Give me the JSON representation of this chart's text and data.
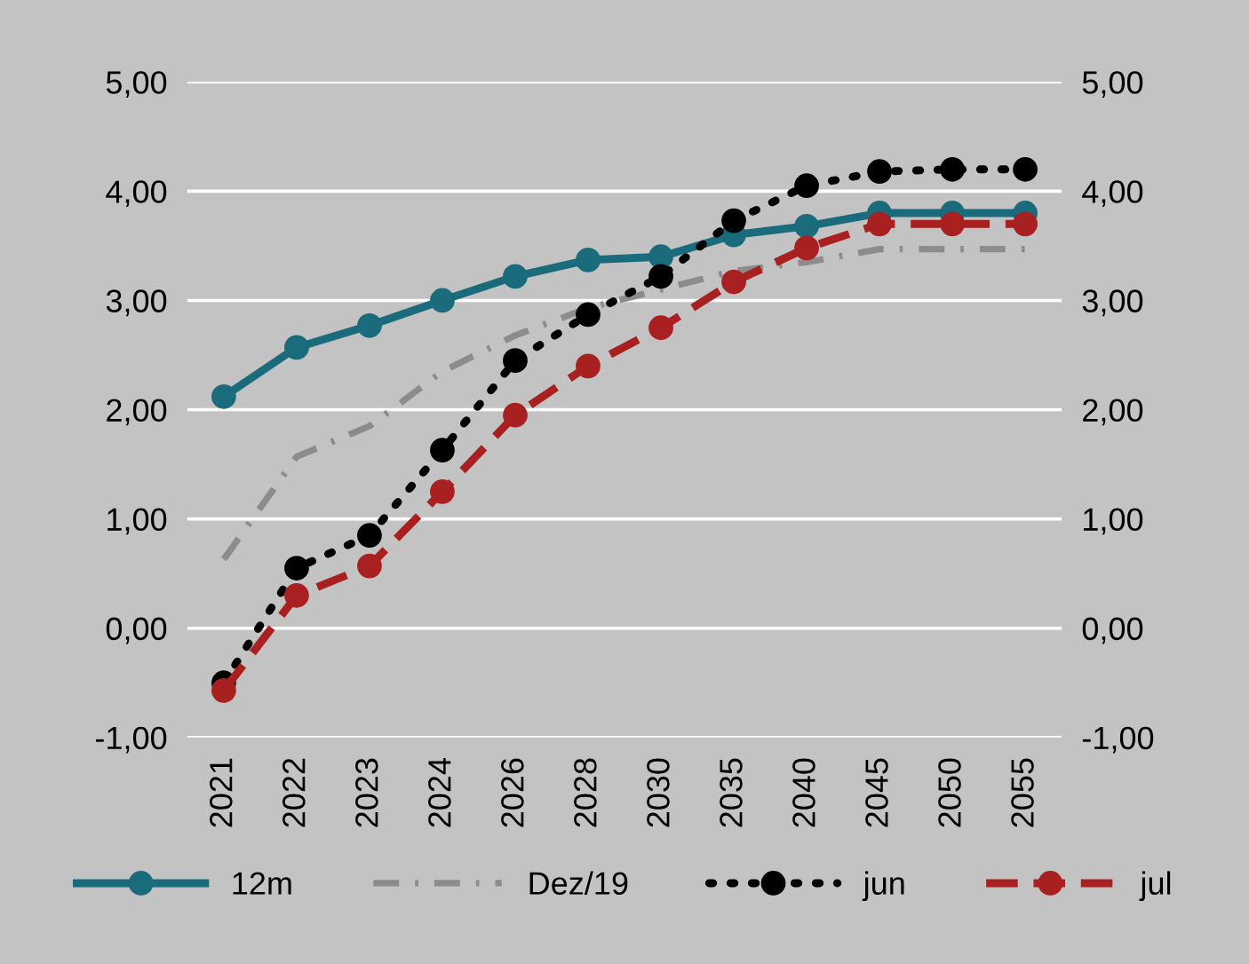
{
  "chart_data": {
    "type": "line",
    "categories": [
      "2021",
      "2022",
      "2023",
      "2024",
      "2026",
      "2028",
      "2030",
      "2035",
      "2040",
      "2045",
      "2050",
      "2055"
    ],
    "series": [
      {
        "name": "12m",
        "color": "#1a6b7c",
        "marker": "circle",
        "line_style": "solid",
        "values": [
          2.12,
          2.57,
          2.77,
          3.0,
          3.22,
          3.37,
          3.4,
          3.6,
          3.68,
          3.8,
          3.8,
          3.8
        ]
      },
      {
        "name": "Dez/19",
        "color": "#8c8c8c",
        "marker": "none",
        "line_style": "dashdot",
        "values": [
          0.63,
          1.57,
          1.85,
          2.35,
          2.68,
          2.93,
          3.1,
          3.27,
          3.35,
          3.47,
          3.47,
          3.47
        ]
      },
      {
        "name": "jun",
        "color": "#000000",
        "marker": "circle",
        "line_style": "dotted",
        "values": [
          -0.5,
          0.55,
          0.85,
          1.63,
          2.45,
          2.87,
          3.22,
          3.73,
          4.05,
          4.18,
          4.2,
          4.2
        ]
      },
      {
        "name": "jul",
        "color": "#a82020",
        "marker": "circle",
        "line_style": "dashed",
        "values": [
          -0.57,
          0.3,
          0.57,
          1.25,
          1.95,
          2.4,
          2.75,
          3.17,
          3.48,
          3.7,
          3.7,
          3.7
        ]
      }
    ],
    "ylim": [
      -1,
      5
    ],
    "yticks": [
      {
        "value": -1,
        "label": "-1,00"
      },
      {
        "value": 0,
        "label": "0,00"
      },
      {
        "value": 1,
        "label": "1,00"
      },
      {
        "value": 2,
        "label": "2,00"
      },
      {
        "value": 3,
        "label": "3,00"
      },
      {
        "value": 4,
        "label": "4,00"
      },
      {
        "value": 5,
        "label": "5,00"
      }
    ],
    "y2lim": [
      -1,
      5
    ],
    "y2ticks": [
      {
        "value": -1,
        "label": "-1,00"
      },
      {
        "value": 0,
        "label": "0,00"
      },
      {
        "value": 1,
        "label": "1,00"
      },
      {
        "value": 2,
        "label": "2,00"
      },
      {
        "value": 3,
        "label": "3,00"
      },
      {
        "value": 4,
        "label": "4,00"
      },
      {
        "value": 5,
        "label": "5,00"
      }
    ],
    "grid": "y",
    "legend": "bottom"
  }
}
